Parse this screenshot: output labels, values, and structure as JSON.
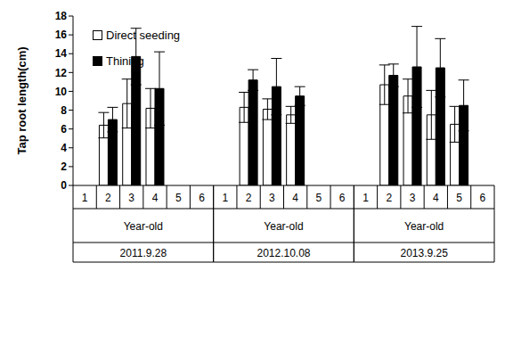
{
  "chart_data": {
    "type": "bar",
    "y_label": "Tap root length(cm)",
    "categories": [
      "1",
      "2",
      "3",
      "4",
      "5",
      "6",
      "1",
      "2",
      "3",
      "4",
      "5",
      "6",
      "1",
      "2",
      "3",
      "4",
      "5",
      "6"
    ],
    "groups": [
      {
        "title": "Year-old",
        "date": "2011.9.28"
      },
      {
        "title": "Year-old",
        "date": "2012.10.08"
      },
      {
        "title": "Year-old",
        "date": "2013.9.25"
      }
    ],
    "series": [
      {
        "name": "Direct seeding",
        "color": "#ffffff",
        "values": [
          null,
          6.4,
          8.7,
          8.2,
          null,
          null,
          null,
          8.3,
          8.1,
          7.5,
          null,
          null,
          null,
          10.7,
          9.5,
          7.5,
          6.5,
          null
        ],
        "errors": [
          null,
          1.35,
          2.6,
          2.1,
          null,
          null,
          null,
          1.6,
          1.1,
          0.9,
          null,
          null,
          null,
          2.1,
          1.8,
          2.6,
          1.9,
          null
        ]
      },
      {
        "name": "Thining",
        "color": "#000000",
        "values": [
          null,
          7.0,
          13.7,
          10.3,
          null,
          null,
          null,
          11.2,
          10.5,
          9.5,
          null,
          null,
          null,
          11.7,
          12.6,
          12.5,
          8.5,
          null
        ],
        "errors": [
          null,
          1.3,
          3.0,
          3.9,
          null,
          null,
          null,
          1.1,
          3.0,
          1.0,
          null,
          null,
          null,
          1.2,
          4.3,
          3.1,
          2.7,
          null
        ]
      }
    ],
    "ylim": [
      0,
      18
    ],
    "yticks": [
      0,
      2,
      4,
      6,
      8,
      10,
      12,
      14,
      16,
      18
    ],
    "legend": "upper left"
  }
}
